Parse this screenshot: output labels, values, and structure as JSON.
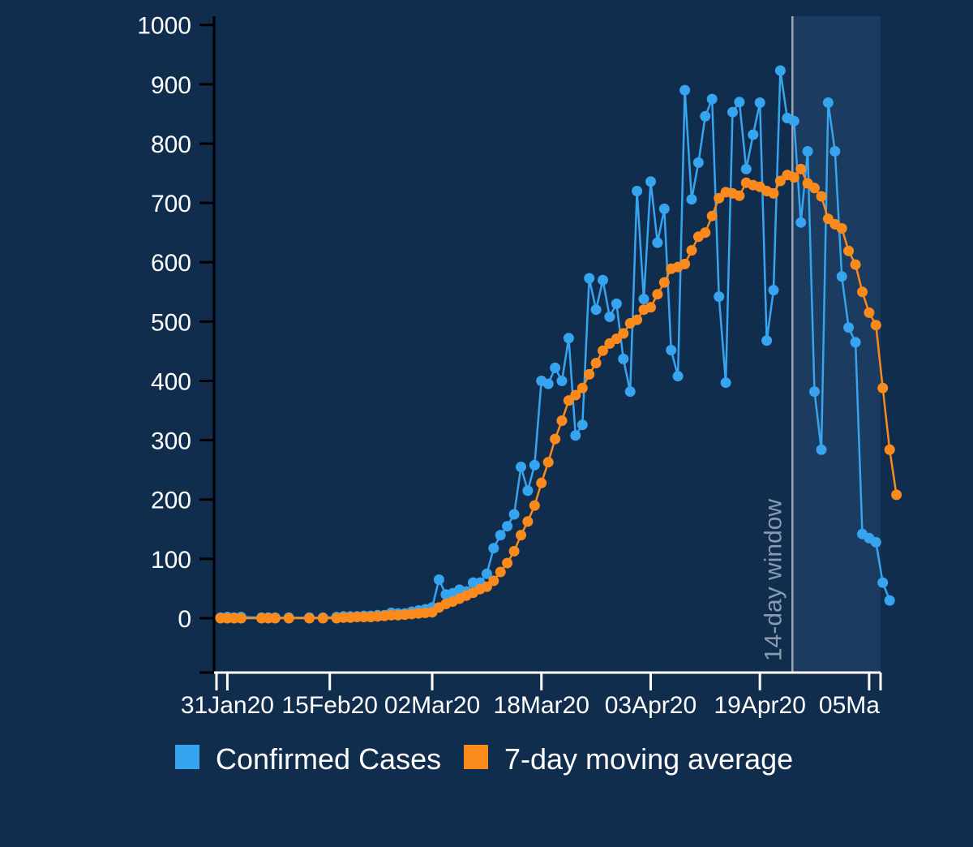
{
  "chart_data": {
    "type": "line",
    "title": "",
    "xlabel": "",
    "ylabel": "",
    "ylim": [
      -90,
      1000
    ],
    "yticks": [
      0,
      100,
      200,
      300,
      400,
      500,
      600,
      700,
      800,
      900,
      1000
    ],
    "x_start": "2020-01-30",
    "xticks": [
      {
        "day": 1,
        "label": "31Jan20"
      },
      {
        "day": 16,
        "label": "15Feb20"
      },
      {
        "day": 31,
        "label": "02Mar20"
      },
      {
        "day": 47,
        "label": "18Mar20"
      },
      {
        "day": 63,
        "label": "03Apr20"
      },
      {
        "day": 79,
        "label": "19Apr20"
      },
      {
        "day": 95,
        "label": "05Ma"
      }
    ],
    "window": {
      "start_day": 84,
      "end_day": 97,
      "label": "14-day window"
    },
    "series": [
      {
        "name": "Confirmed Cases",
        "color": "#36a4ee",
        "points": [
          [
            0,
            1
          ],
          [
            1,
            2
          ],
          [
            2,
            1
          ],
          [
            3,
            2
          ],
          [
            6,
            1
          ],
          [
            7,
            1
          ],
          [
            8,
            1
          ],
          [
            10,
            1
          ],
          [
            13,
            1
          ],
          [
            15,
            1
          ],
          [
            17,
            2
          ],
          [
            18,
            3
          ],
          [
            19,
            3
          ],
          [
            20,
            3
          ],
          [
            21,
            4
          ],
          [
            22,
            4
          ],
          [
            23,
            5
          ],
          [
            24,
            5
          ],
          [
            25,
            9
          ],
          [
            26,
            8
          ],
          [
            27,
            8
          ],
          [
            28,
            11
          ],
          [
            29,
            13
          ],
          [
            30,
            15
          ],
          [
            31,
            18
          ],
          [
            32,
            65
          ],
          [
            33,
            40
          ],
          [
            34,
            42
          ],
          [
            35,
            48
          ],
          [
            36,
            45
          ],
          [
            37,
            60
          ],
          [
            38,
            60
          ],
          [
            39,
            75
          ],
          [
            40,
            118
          ],
          [
            41,
            140
          ],
          [
            42,
            155
          ],
          [
            43,
            175
          ],
          [
            44,
            255
          ],
          [
            45,
            215
          ],
          [
            46,
            258
          ],
          [
            47,
            400
          ],
          [
            48,
            395
          ],
          [
            49,
            422
          ],
          [
            50,
            400
          ],
          [
            51,
            472
          ],
          [
            52,
            308
          ],
          [
            53,
            326
          ],
          [
            54,
            573
          ],
          [
            55,
            520
          ],
          [
            56,
            570
          ],
          [
            57,
            508
          ],
          [
            58,
            530
          ],
          [
            59,
            437
          ],
          [
            60,
            382
          ],
          [
            61,
            720
          ],
          [
            62,
            538
          ],
          [
            63,
            736
          ],
          [
            64,
            633
          ],
          [
            65,
            690
          ],
          [
            66,
            452
          ],
          [
            67,
            408
          ],
          [
            68,
            890
          ],
          [
            69,
            706
          ],
          [
            70,
            768
          ],
          [
            71,
            846
          ],
          [
            72,
            875
          ],
          [
            73,
            542
          ],
          [
            74,
            397
          ],
          [
            75,
            853
          ],
          [
            76,
            870
          ],
          [
            77,
            757
          ],
          [
            78,
            815
          ],
          [
            79,
            869
          ],
          [
            80,
            468
          ],
          [
            81,
            553
          ],
          [
            82,
            923
          ],
          [
            83,
            843
          ],
          [
            84,
            838
          ],
          [
            85,
            667
          ],
          [
            86,
            787
          ],
          [
            87,
            382
          ],
          [
            88,
            284
          ],
          [
            89,
            869
          ],
          [
            90,
            787
          ],
          [
            91,
            576
          ],
          [
            92,
            490
          ],
          [
            93,
            465
          ],
          [
            94,
            142
          ],
          [
            95,
            135
          ],
          [
            96,
            128
          ],
          [
            97,
            60
          ],
          [
            98,
            30
          ]
        ]
      },
      {
        "name": "7-day moving average",
        "color": "#fb8a1d",
        "points": [
          [
            0,
            0
          ],
          [
            1,
            0
          ],
          [
            2,
            0
          ],
          [
            3,
            0
          ],
          [
            6,
            0
          ],
          [
            7,
            0
          ],
          [
            8,
            0
          ],
          [
            10,
            0
          ],
          [
            13,
            0
          ],
          [
            15,
            0
          ],
          [
            17,
            0
          ],
          [
            18,
            1
          ],
          [
            19,
            1
          ],
          [
            20,
            2
          ],
          [
            21,
            2
          ],
          [
            22,
            2
          ],
          [
            23,
            3
          ],
          [
            24,
            4
          ],
          [
            25,
            5
          ],
          [
            26,
            5
          ],
          [
            27,
            6
          ],
          [
            28,
            7
          ],
          [
            29,
            8
          ],
          [
            30,
            9
          ],
          [
            31,
            10
          ],
          [
            32,
            18
          ],
          [
            33,
            24
          ],
          [
            34,
            28
          ],
          [
            35,
            33
          ],
          [
            36,
            38
          ],
          [
            37,
            43
          ],
          [
            38,
            49
          ],
          [
            39,
            53
          ],
          [
            40,
            63
          ],
          [
            41,
            78
          ],
          [
            42,
            93
          ],
          [
            43,
            113
          ],
          [
            44,
            140
          ],
          [
            45,
            163
          ],
          [
            46,
            190
          ],
          [
            47,
            228
          ],
          [
            48,
            263
          ],
          [
            49,
            302
          ],
          [
            50,
            333
          ],
          [
            51,
            367
          ],
          [
            52,
            376
          ],
          [
            53,
            388
          ],
          [
            54,
            411
          ],
          [
            55,
            430
          ],
          [
            56,
            451
          ],
          [
            57,
            463
          ],
          [
            58,
            471
          ],
          [
            59,
            480
          ],
          [
            60,
            497
          ],
          [
            61,
            503
          ],
          [
            62,
            520
          ],
          [
            63,
            524
          ],
          [
            64,
            546
          ],
          [
            65,
            566
          ],
          [
            66,
            589
          ],
          [
            67,
            592
          ],
          [
            68,
            597
          ],
          [
            69,
            620
          ],
          [
            70,
            643
          ],
          [
            71,
            650
          ],
          [
            72,
            678
          ],
          [
            73,
            708
          ],
          [
            74,
            718
          ],
          [
            75,
            716
          ],
          [
            76,
            712
          ],
          [
            77,
            734
          ],
          [
            78,
            730
          ],
          [
            79,
            727
          ],
          [
            80,
            720
          ],
          [
            81,
            716
          ],
          [
            82,
            737
          ],
          [
            83,
            747
          ],
          [
            84,
            743
          ],
          [
            85,
            757
          ],
          [
            86,
            733
          ],
          [
            87,
            725
          ],
          [
            88,
            711
          ],
          [
            89,
            673
          ],
          [
            90,
            664
          ],
          [
            91,
            657
          ],
          [
            92,
            619
          ],
          [
            93,
            596
          ],
          [
            94,
            550
          ],
          [
            95,
            515
          ],
          [
            96,
            494
          ],
          [
            97,
            388
          ],
          [
            98,
            284
          ],
          [
            99,
            208
          ]
        ]
      }
    ],
    "legend": {
      "position": "bottom-left"
    }
  }
}
